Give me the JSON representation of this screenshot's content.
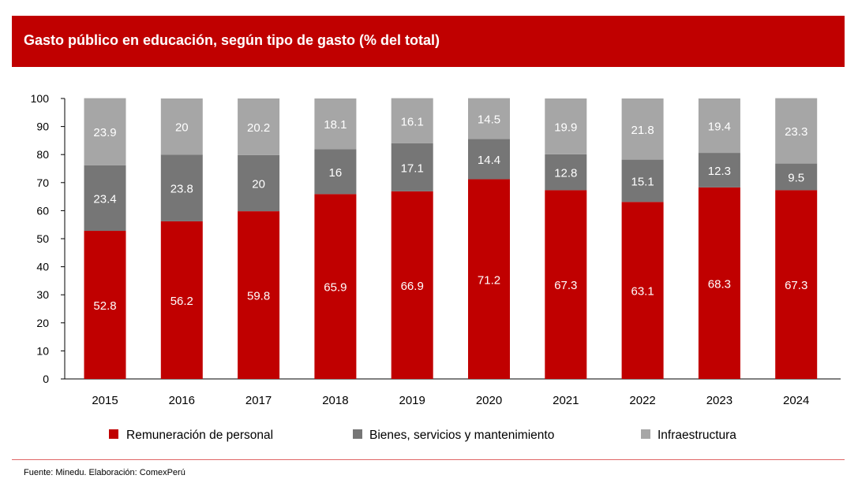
{
  "title": "Gasto público en educación, según tipo de gasto (% del total)",
  "source": "Fuente: Minedu. Elaboración: ComexPerú",
  "colors": {
    "header": "#c00000",
    "remuneracion": "#c00000",
    "bienes": "#767676",
    "infraestructura": "#a6a6a6"
  },
  "chart_data": {
    "type": "bar",
    "stacked": true,
    "categories": [
      "2015",
      "2016",
      "2017",
      "2018",
      "2019",
      "2020",
      "2021",
      "2022",
      "2023",
      "2024"
    ],
    "series": [
      {
        "name": "Remuneración de personal",
        "color": "#c00000",
        "label_color": "#ffffff",
        "values": [
          52.8,
          56.2,
          59.8,
          65.9,
          66.9,
          71.2,
          67.3,
          63.1,
          68.3,
          67.3
        ],
        "labels": [
          "52.8",
          "56.2",
          "59.8",
          "65.9",
          "66.9",
          "71.2",
          "67.3",
          "63.1",
          "68.3",
          "67.3"
        ]
      },
      {
        "name": "Bienes, servicios y mantenimiento",
        "color": "#767676",
        "label_color": "#ffffff",
        "values": [
          23.4,
          23.8,
          20,
          16,
          17.1,
          14.4,
          12.8,
          15.1,
          12.3,
          9.5
        ],
        "labels": [
          "23.4",
          "23.8",
          "20",
          "16",
          "17.1",
          "14.4",
          "12.8",
          "15.1",
          "12.3",
          "9.5"
        ]
      },
      {
        "name": "Infraestructura",
        "color": "#a6a6a6",
        "label_color": "#ffffff",
        "values": [
          23.9,
          20,
          20.2,
          18.1,
          16.1,
          14.5,
          19.9,
          21.8,
          19.4,
          23.3
        ],
        "labels": [
          "23.9",
          "20",
          "20.2",
          "18.1",
          "16.1",
          "14.5",
          "19.9",
          "21.8",
          "19.4",
          "23.3"
        ]
      }
    ],
    "y_ticks": [
      "0",
      "10",
      "20",
      "30",
      "40",
      "50",
      "60",
      "70",
      "80",
      "90",
      "100"
    ],
    "ylim": [
      0,
      100
    ],
    "grid": false,
    "legend_position": "bottom"
  }
}
